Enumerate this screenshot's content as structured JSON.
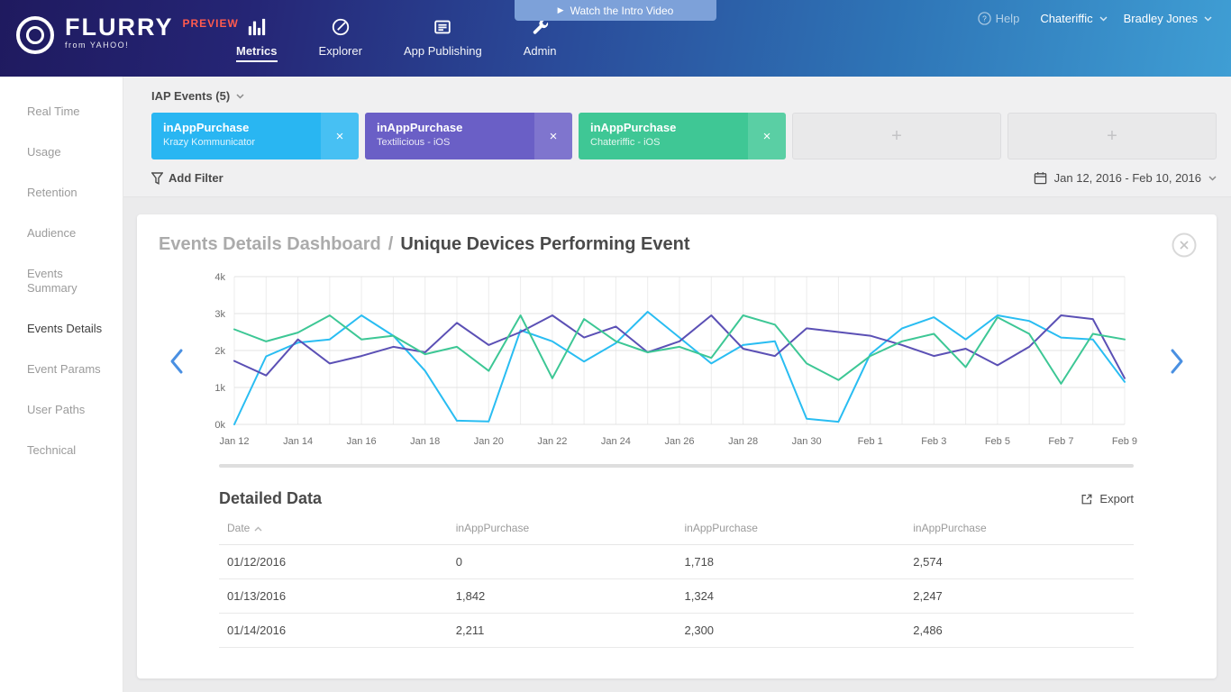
{
  "header": {
    "brand": {
      "name": "FLURRY",
      "tagline": "from YAHOO!",
      "badge": "PREVIEW"
    },
    "nav": [
      {
        "label": "Metrics",
        "icon": "bar-chart-icon",
        "active": true
      },
      {
        "label": "Explorer",
        "icon": "compass-icon",
        "active": false
      },
      {
        "label": "App Publishing",
        "icon": "news-icon",
        "active": false
      },
      {
        "label": "Admin",
        "icon": "wrench-icon",
        "active": false
      }
    ],
    "video_button": "Watch the Intro Video",
    "help_label": "Help",
    "company": "Chateriffic",
    "user": "Bradley Jones"
  },
  "sidebar": {
    "items": [
      {
        "label": "Real Time",
        "active": false
      },
      {
        "label": "Usage",
        "active": false
      },
      {
        "label": "Retention",
        "active": false
      },
      {
        "label": "Audience",
        "active": false
      },
      {
        "label": "Events Summary",
        "active": false
      },
      {
        "label": "Events Details",
        "active": true
      },
      {
        "label": "Event Params",
        "active": false
      },
      {
        "label": "User Paths",
        "active": false
      },
      {
        "label": "Technical",
        "active": false
      }
    ]
  },
  "filters": {
    "title": "IAP Events (5)",
    "chips": [
      {
        "title": "inAppPurchase",
        "subtitle": "Krazy Kommunicator",
        "color": "#29b6f2",
        "remove_label": "×"
      },
      {
        "title": "inAppPurchase",
        "subtitle": "Textilicious - iOS",
        "color": "#6a5fc6",
        "remove_label": "×"
      },
      {
        "title": "inAppPurchase",
        "subtitle": "Chateriffic - iOS",
        "color": "#3fc795",
        "remove_label": "×"
      }
    ],
    "empty_slots": 2,
    "empty_slot_symbol": "+",
    "add_filter_label": "Add Filter",
    "date_range": "Jan 12, 2016 - Feb 10, 2016"
  },
  "dashboard": {
    "breadcrumb_parent": "Events Details Dashboard",
    "separator": "/",
    "title": "Unique Devices Performing Event"
  },
  "chart_data": {
    "type": "line",
    "title": "Unique Devices Performing Event",
    "x": [
      "Jan 12",
      "Jan 13",
      "Jan 14",
      "Jan 15",
      "Jan 16",
      "Jan 17",
      "Jan 18",
      "Jan 19",
      "Jan 20",
      "Jan 21",
      "Jan 22",
      "Jan 23",
      "Jan 24",
      "Jan 25",
      "Jan 26",
      "Jan 27",
      "Jan 28",
      "Jan 29",
      "Jan 30",
      "Jan 31",
      "Feb 1",
      "Feb 2",
      "Feb 3",
      "Feb 4",
      "Feb 5",
      "Feb 6",
      "Feb 7",
      "Feb 8",
      "Feb 9"
    ],
    "x_tick_step": 2,
    "ylabels": [
      "0k",
      "1k",
      "2k",
      "3k",
      "4k"
    ],
    "ylim": [
      0,
      4000
    ],
    "grid": true,
    "legend": "none",
    "series": [
      {
        "name": "inAppPurchase (Krazy Kommunicator)",
        "color": "#29bdf2",
        "values": [
          0,
          1842,
          2211,
          2300,
          2950,
          2400,
          1450,
          100,
          80,
          2550,
          2250,
          1700,
          2200,
          3050,
          2350,
          1650,
          2150,
          2250,
          150,
          70,
          1900,
          2600,
          2900,
          2300,
          2950,
          2800,
          2350,
          2300,
          1150
        ]
      },
      {
        "name": "inAppPurchase (Textilicious - iOS)",
        "color": "#5b50b5",
        "values": [
          1718,
          1324,
          2300,
          1650,
          1850,
          2100,
          1950,
          2750,
          2150,
          2500,
          2950,
          2350,
          2650,
          1950,
          2250,
          2950,
          2050,
          1850,
          2600,
          2500,
          2400,
          2150,
          1850,
          2050,
          1600,
          2100,
          2950,
          2850,
          1250
        ]
      },
      {
        "name": "inAppPurchase (Chateriffic - iOS)",
        "color": "#3dc795",
        "values": [
          2574,
          2247,
          2486,
          2950,
          2300,
          2400,
          1900,
          2100,
          1450,
          2950,
          1250,
          2850,
          2250,
          1950,
          2100,
          1800,
          2950,
          2700,
          1650,
          1200,
          1850,
          2250,
          2450,
          1550,
          2900,
          2450,
          1100,
          2450,
          2300
        ]
      }
    ]
  },
  "detailed_data": {
    "title": "Detailed Data",
    "export_label": "Export",
    "columns": [
      "Date",
      "inAppPurchase",
      "inAppPurchase",
      "inAppPurchase"
    ],
    "rows": [
      [
        "01/12/2016",
        "0",
        "1,718",
        "2,574"
      ],
      [
        "01/13/2016",
        "1,842",
        "1,324",
        "2,247"
      ],
      [
        "01/14/2016",
        "2,211",
        "2,300",
        "2,486"
      ]
    ]
  }
}
